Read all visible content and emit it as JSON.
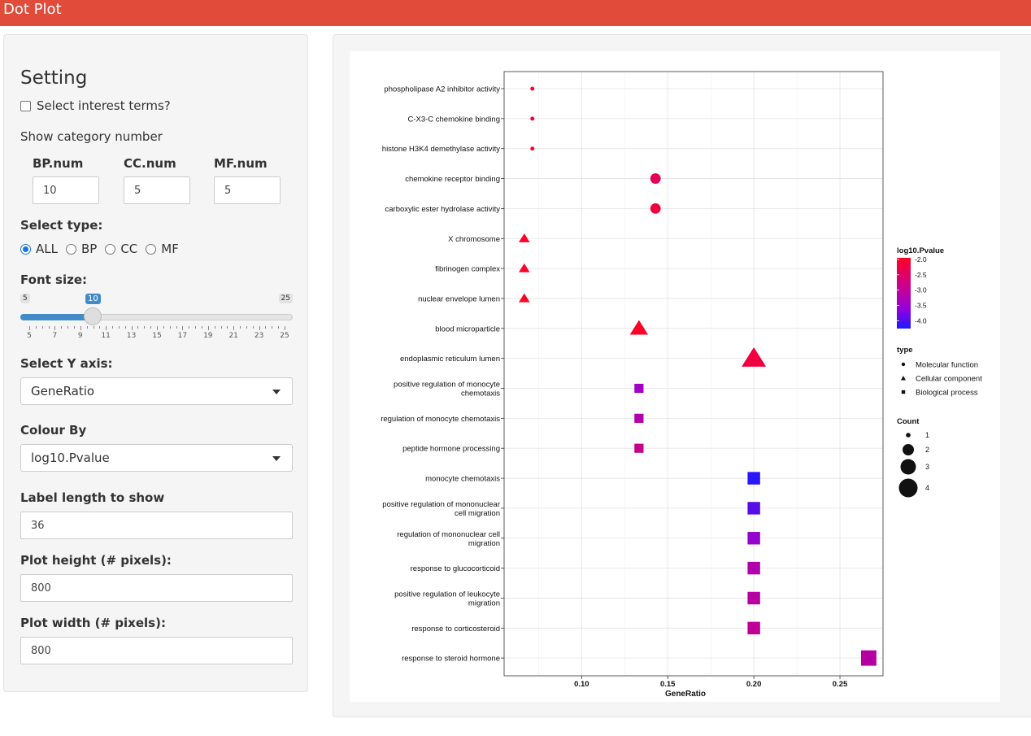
{
  "header": {
    "title": "Dot Plot"
  },
  "sidebar": {
    "title": "Setting",
    "interest_checkbox_label": "Select interest terms?",
    "category_number_label": "Show category number",
    "bp_label": "BP.num",
    "bp_value": "10",
    "cc_label": "CC.num",
    "cc_value": "5",
    "mf_label": "MF.num",
    "mf_value": "5",
    "select_type_label": "Select type:",
    "type_options": [
      "ALL",
      "BP",
      "CC",
      "MF"
    ],
    "type_selected": "ALL",
    "font_size_label": "Font size:",
    "font_size": {
      "min": "5",
      "max": "25",
      "value": "10",
      "ticks": [
        "5",
        "7",
        "9",
        "11",
        "13",
        "15",
        "17",
        "19",
        "21",
        "23",
        "25"
      ]
    },
    "y_axis_label": "Select Y axis:",
    "y_axis_value": "GeneRatio",
    "colour_by_label": "Colour By",
    "colour_by_value": "log10.Pvalue",
    "label_length_label": "Label length to show",
    "label_length_value": "36",
    "plot_height_label": "Plot height (# pixels):",
    "plot_height_value": "800",
    "plot_width_label": "Plot width (# pixels):",
    "plot_width_value": "800"
  },
  "chart_data": {
    "type": "scatter",
    "xlabel": "GeneRatio",
    "ylabel": "",
    "xlim": [
      0.055,
      0.275
    ],
    "xticks": [
      0.1,
      0.15,
      0.2,
      0.25
    ],
    "xtick_labels": [
      "0.10",
      "0.15",
      "0.20",
      "0.25"
    ],
    "grid": true,
    "points": [
      {
        "term": [
          "phospholipase A2 inhibitor activity"
        ],
        "x": 0.0714,
        "count": 1,
        "log10p": -2.0,
        "type": "Molecular function"
      },
      {
        "term": [
          "C-X3-C chemokine binding"
        ],
        "x": 0.0714,
        "count": 1,
        "log10p": -2.0,
        "type": "Molecular function"
      },
      {
        "term": [
          "histone H3K4 demethylase activity"
        ],
        "x": 0.0714,
        "count": 1,
        "log10p": -2.0,
        "type": "Molecular function"
      },
      {
        "term": [
          "chemokine receptor binding"
        ],
        "x": 0.1429,
        "count": 2,
        "log10p": -2.4,
        "type": "Molecular function"
      },
      {
        "term": [
          "carboxylic ester hydrolase activity"
        ],
        "x": 0.1429,
        "count": 2,
        "log10p": -2.2,
        "type": "Molecular function"
      },
      {
        "term": [
          "X chromosome"
        ],
        "x": 0.0667,
        "count": 1,
        "log10p": -2.0,
        "type": "Cellular component"
      },
      {
        "term": [
          "fibrinogen complex"
        ],
        "x": 0.0667,
        "count": 1,
        "log10p": -2.0,
        "type": "Cellular component"
      },
      {
        "term": [
          "nuclear envelope lumen"
        ],
        "x": 0.0667,
        "count": 1,
        "log10p": -2.0,
        "type": "Cellular component"
      },
      {
        "term": [
          "blood microparticle"
        ],
        "x": 0.1333,
        "count": 2,
        "log10p": -2.0,
        "type": "Cellular component"
      },
      {
        "term": [
          "endoplasmic reticulum lumen"
        ],
        "x": 0.2,
        "count": 3,
        "log10p": -2.2,
        "type": "Cellular component"
      },
      {
        "term": [
          "positive regulation of monocyte",
          "chemotaxis"
        ],
        "x": 0.1333,
        "count": 2,
        "log10p": -3.3,
        "type": "Biological process"
      },
      {
        "term": [
          "regulation of monocyte chemotaxis"
        ],
        "x": 0.1333,
        "count": 2,
        "log10p": -3.1,
        "type": "Biological process"
      },
      {
        "term": [
          "peptide hormone processing"
        ],
        "x": 0.1333,
        "count": 2,
        "log10p": -2.8,
        "type": "Biological process"
      },
      {
        "term": [
          "monocyte chemotaxis"
        ],
        "x": 0.2,
        "count": 3,
        "log10p": -4.1,
        "type": "Biological process"
      },
      {
        "term": [
          "positive regulation of mononuclear",
          "cell migration"
        ],
        "x": 0.2,
        "count": 3,
        "log10p": -3.8,
        "type": "Biological process"
      },
      {
        "term": [
          "regulation of mononuclear cell",
          "migration"
        ],
        "x": 0.2,
        "count": 3,
        "log10p": -3.4,
        "type": "Biological process"
      },
      {
        "term": [
          "response to glucocorticoid"
        ],
        "x": 0.2,
        "count": 3,
        "log10p": -3.1,
        "type": "Biological process"
      },
      {
        "term": [
          "positive regulation of leukocyte",
          "migration"
        ],
        "x": 0.2,
        "count": 3,
        "log10p": -3.0,
        "type": "Biological process"
      },
      {
        "term": [
          "response to corticosteroid"
        ],
        "x": 0.2,
        "count": 3,
        "log10p": -2.9,
        "type": "Biological process"
      },
      {
        "term": [
          "response to steroid hormone"
        ],
        "x": 0.2667,
        "count": 4,
        "log10p": -3.0,
        "type": "Biological process"
      }
    ],
    "legend_color": {
      "title": "log10.Pvalue",
      "ticks": [
        "-2.0",
        "-2.5",
        "-3.0",
        "-3.5",
        "-4.0"
      ],
      "high_color": "#ff0026",
      "low_color": "#1a1aff",
      "range": [
        -2.0,
        -4.2
      ]
    },
    "legend_type": {
      "title": "type",
      "items": [
        "Molecular function",
        "Cellular component",
        "Biological process"
      ]
    },
    "legend_count": {
      "title": "Count",
      "items": [
        "1",
        "2",
        "3",
        "4"
      ]
    }
  }
}
